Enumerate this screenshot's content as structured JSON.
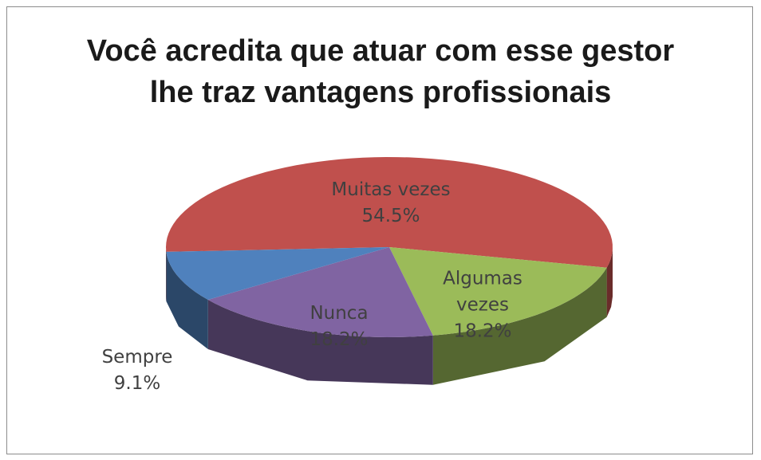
{
  "chart_data": {
    "type": "pie",
    "title": "Você acredita que atuar com esse gestor lhe traz vantagens profissionais",
    "categories": [
      "Muitas vezes",
      "Algumas vezes",
      "Nunca",
      "Sempre"
    ],
    "values": [
      54.5,
      18.2,
      18.2,
      9.1
    ],
    "value_labels": [
      "54.5%",
      "18.2%",
      "18.2%",
      "9.1%"
    ],
    "colors": [
      "#c0504d",
      "#9bbb59",
      "#8064a2",
      "#4f81bd"
    ]
  }
}
